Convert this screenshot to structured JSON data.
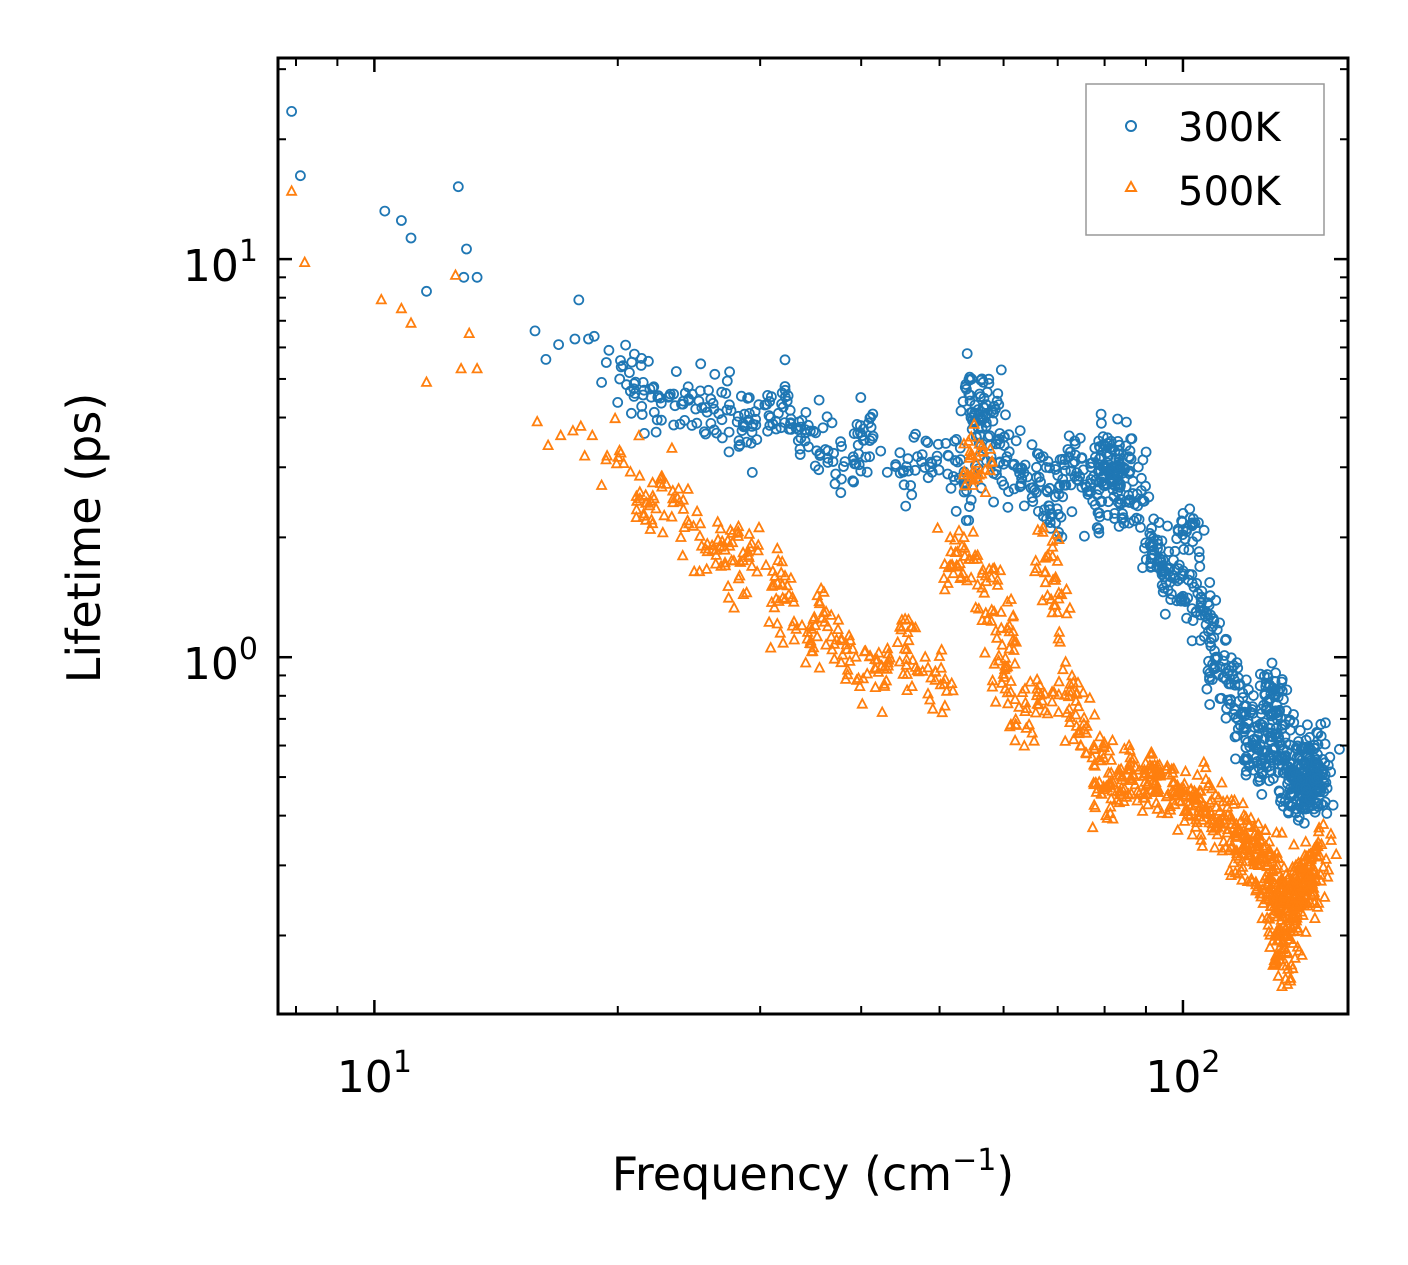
{
  "chart_data": {
    "type": "scatter",
    "xscale": "log",
    "yscale": "log",
    "xlim": [
      7.6,
      160
    ],
    "ylim": [
      0.127,
      32
    ],
    "xlabel_base": "Frequency (cm",
    "xlabel_sup": "−1",
    "xlabel_tail": ")",
    "ylabel": "Lifetime (ps)",
    "x_ticks": [
      {
        "value": 10,
        "base": "10",
        "exp": "1"
      },
      {
        "value": 100,
        "base": "10",
        "exp": "2"
      }
    ],
    "y_ticks": [
      {
        "value": 1,
        "base": "10",
        "exp": "0"
      },
      {
        "value": 10,
        "base": "10",
        "exp": "1"
      }
    ],
    "legend_position": "top-right",
    "series": [
      {
        "name": "300K",
        "marker": "circle",
        "color": "#1f77b4",
        "points": [
          [
            7.9,
            23.5
          ],
          [
            8.1,
            16.2
          ],
          [
            10.3,
            13.2
          ],
          [
            10.8,
            12.5
          ],
          [
            11.1,
            11.3
          ],
          [
            11.6,
            8.3
          ],
          [
            12.7,
            15.2
          ],
          [
            13.0,
            10.6
          ],
          [
            12.9,
            9.0
          ],
          [
            13.4,
            9.0
          ],
          [
            15.8,
            6.6
          ],
          [
            16.3,
            5.6
          ],
          [
            16.9,
            6.1
          ],
          [
            17.7,
            6.3
          ],
          [
            17.9,
            7.9
          ],
          [
            18.4,
            6.3
          ],
          [
            18.7,
            6.4
          ],
          [
            19.5,
            5.9
          ],
          [
            19.1,
            4.9
          ],
          [
            20.3,
            5.4
          ],
          [
            21.0,
            4.6
          ],
          [
            21.5,
            4.9
          ],
          [
            22.0,
            4.5
          ],
          [
            23.1,
            4.5
          ],
          [
            24.1,
            4.4
          ],
          [
            25.2,
            4.4
          ],
          [
            26.3,
            4.2
          ],
          [
            27.2,
            4.6
          ],
          [
            28.1,
            3.9
          ],
          [
            29.3,
            3.8
          ],
          [
            30.4,
            4.3
          ],
          [
            31.6,
            4.1
          ],
          [
            32.4,
            4.4
          ],
          [
            33.5,
            3.9
          ],
          [
            34.6,
            3.7
          ],
          [
            36.4,
            3.3
          ],
          [
            38.2,
            3.1
          ],
          [
            40.1,
            3.6
          ],
          [
            41.0,
            3.5
          ],
          [
            44.7,
            2.9
          ],
          [
            47.5,
            3.1
          ],
          [
            51.3,
            3.2
          ],
          [
            53.7,
            2.7
          ],
          [
            54.8,
            5.0
          ],
          [
            55.3,
            4.3
          ],
          [
            56.1,
            3.2
          ],
          [
            57.1,
            3.8
          ],
          [
            58.9,
            4.4
          ],
          [
            60.1,
            3.4
          ],
          [
            62.8,
            2.9
          ],
          [
            65.9,
            3.0
          ],
          [
            68.2,
            2.4
          ],
          [
            71.0,
            2.8
          ],
          [
            73.5,
            3.1
          ],
          [
            76.9,
            2.6
          ],
          [
            79.2,
            3.2
          ],
          [
            80.1,
            3.4
          ],
          [
            81.5,
            3.0
          ],
          [
            82.4,
            2.9
          ],
          [
            83.7,
            2.7
          ],
          [
            86.0,
            3.3
          ],
          [
            87.9,
            2.4
          ],
          [
            91.2,
            1.9
          ],
          [
            94.3,
            1.7
          ],
          [
            97.5,
            1.6
          ],
          [
            101.1,
            2.1
          ],
          [
            103.2,
            1.5
          ],
          [
            106.8,
            1.3
          ],
          [
            110.4,
            1.0
          ],
          [
            114.0,
            0.86
          ],
          [
            118.5,
            0.72
          ],
          [
            122.1,
            0.62
          ],
          [
            125.6,
            0.56
          ],
          [
            128.3,
            0.72
          ],
          [
            130.1,
            0.83
          ],
          [
            132.4,
            0.66
          ],
          [
            135.7,
            0.54
          ],
          [
            138.0,
            0.48
          ],
          [
            140.2,
            0.45
          ],
          [
            142.5,
            0.51
          ],
          [
            144.0,
            0.47
          ],
          [
            145.5,
            0.53
          ],
          [
            146.7,
            0.57
          ]
        ]
      },
      {
        "name": "500K",
        "marker": "triangle",
        "color": "#ff7f0e",
        "points": [
          [
            7.9,
            14.8
          ],
          [
            8.2,
            9.8
          ],
          [
            10.2,
            7.9
          ],
          [
            10.8,
            7.5
          ],
          [
            11.1,
            6.9
          ],
          [
            11.6,
            4.9
          ],
          [
            12.6,
            9.1
          ],
          [
            12.8,
            5.3
          ],
          [
            13.1,
            6.5
          ],
          [
            13.4,
            5.3
          ],
          [
            15.9,
            3.9
          ],
          [
            16.4,
            3.4
          ],
          [
            17.0,
            3.6
          ],
          [
            17.6,
            3.7
          ],
          [
            18.0,
            3.8
          ],
          [
            18.2,
            3.2
          ],
          [
            18.6,
            3.6
          ],
          [
            19.1,
            2.7
          ],
          [
            19.4,
            3.2
          ],
          [
            20.1,
            3.3
          ],
          [
            21.3,
            2.5
          ],
          [
            21.9,
            2.4
          ],
          [
            22.6,
            2.8
          ],
          [
            23.4,
            2.5
          ],
          [
            24.4,
            2.2
          ],
          [
            25.4,
            1.9
          ],
          [
            26.8,
            2.1
          ],
          [
            27.5,
            1.9
          ],
          [
            28.3,
            1.6
          ],
          [
            29.0,
            1.8
          ],
          [
            30.5,
            1.7
          ],
          [
            31.4,
            1.4
          ],
          [
            32.2,
            1.6
          ],
          [
            33.8,
            1.2
          ],
          [
            35.1,
            1.2
          ],
          [
            36.2,
            1.3
          ],
          [
            37.8,
            1.1
          ],
          [
            39.4,
            1.0
          ],
          [
            41.6,
            0.94
          ],
          [
            43.2,
            0.95
          ],
          [
            45.8,
            1.1
          ],
          [
            48.0,
            1.0
          ],
          [
            50.8,
            0.88
          ],
          [
            52.5,
            1.7
          ],
          [
            53.3,
            1.9
          ],
          [
            54.9,
            2.9
          ],
          [
            55.6,
            3.2
          ],
          [
            57.0,
            1.6
          ],
          [
            58.4,
            1.3
          ],
          [
            59.7,
            0.86
          ],
          [
            61.6,
            1.1
          ],
          [
            63.8,
            0.73
          ],
          [
            66.5,
            0.85
          ],
          [
            68.0,
            1.8
          ],
          [
            70.2,
            1.4
          ],
          [
            72.3,
            0.82
          ],
          [
            75.4,
            0.68
          ],
          [
            78.8,
            0.55
          ],
          [
            80.6,
            0.47
          ],
          [
            83.3,
            0.52
          ],
          [
            86.1,
            0.49
          ],
          [
            89.6,
            0.52
          ],
          [
            93.2,
            0.51
          ],
          [
            97.0,
            0.46
          ],
          [
            100.4,
            0.48
          ],
          [
            104.0,
            0.43
          ],
          [
            108.1,
            0.41
          ],
          [
            112.0,
            0.39
          ],
          [
            116.2,
            0.36
          ],
          [
            119.8,
            0.34
          ],
          [
            123.4,
            0.33
          ],
          [
            126.5,
            0.31
          ],
          [
            129.0,
            0.29
          ],
          [
            130.6,
            0.24
          ],
          [
            132.0,
            0.2
          ],
          [
            133.5,
            0.185
          ],
          [
            135.1,
            0.24
          ],
          [
            137.3,
            0.27
          ],
          [
            139.6,
            0.26
          ],
          [
            141.8,
            0.28
          ],
          [
            143.9,
            0.27
          ],
          [
            145.4,
            0.33
          ]
        ]
      }
    ]
  }
}
